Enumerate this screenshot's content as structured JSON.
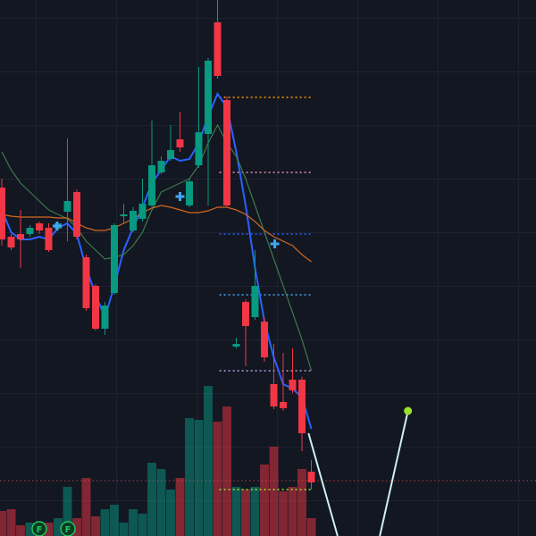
{
  "chart_data": {
    "type": "candlestick",
    "xlim": [
      -0.19,
      56.95
    ],
    "ylim": [
      0,
      600
    ],
    "y2lim": [
      0,
      600
    ],
    "up_color": "#089981",
    "down_color": "#f23645",
    "x": [
      0,
      1,
      2,
      3,
      4,
      5,
      6,
      7,
      8,
      9,
      10,
      11,
      12,
      13,
      14,
      15,
      16,
      17,
      18,
      19,
      20,
      21,
      22,
      23,
      24,
      25,
      26,
      27,
      28,
      29,
      30,
      31,
      32,
      33
    ],
    "open": [
      390,
      335,
      338,
      338,
      350,
      345,
      344,
      363,
      385,
      312,
      280,
      232,
      272,
      358,
      342,
      355,
      370,
      407,
      422,
      444,
      370,
      415,
      450,
      575,
      488,
      212,
      262,
      245,
      240,
      170,
      150,
      175,
      175,
      72
    ],
    "close": [
      332,
      323,
      332,
      345,
      342,
      320,
      350,
      375,
      335,
      255,
      232,
      258,
      348,
      360,
      364,
      372,
      415,
      420,
      432,
      435,
      397,
      452,
      532,
      515,
      370,
      215,
      235,
      280,
      200,
      145,
      143,
      163,
      115,
      60
    ],
    "high": [
      400,
      338,
      365,
      348,
      352,
      350,
      352,
      445,
      388,
      315,
      282,
      262,
      350,
      372,
      368,
      400,
      465,
      425,
      460,
      475,
      400,
      525,
      535,
      600,
      492,
      222,
      265,
      320,
      245,
      215,
      205,
      210,
      178,
      85
    ],
    "low": [
      325,
      320,
      300,
      335,
      338,
      318,
      342,
      330,
      332,
      252,
      230,
      225,
      270,
      350,
      340,
      352,
      368,
      405,
      420,
      430,
      368,
      412,
      370,
      512,
      368,
      210,
      190,
      242,
      195,
      142,
      140,
      160,
      95,
      52
    ],
    "volume": [
      28,
      30,
      12,
      15,
      15,
      15,
      20,
      55,
      20,
      65,
      22,
      30,
      35,
      15,
      30,
      25,
      82,
      75,
      52,
      65,
      132,
      130,
      168,
      128,
      145,
      55,
      52,
      55,
      80,
      100,
      50,
      55,
      75,
      20
    ],
    "lines": [
      {
        "color": "#2962ff",
        "values": [
          365,
          340,
          332,
          332,
          335,
          332,
          345,
          350,
          338,
          300,
          270,
          245,
          280,
          320,
          345,
          368,
          395,
          410,
          425,
          420,
          422,
          440,
          470,
          495,
          480,
          430,
          370,
          300,
          240,
          200,
          170,
          165,
          155,
          120
        ]
      },
      {
        "color": "#3d7a4a",
        "values": [
          430,
          410,
          395,
          385,
          375,
          365,
          360,
          355,
          345,
          330,
          320,
          310,
          312,
          315,
          325,
          340,
          365,
          385,
          390,
          395,
          400,
          415,
          440,
          460,
          440,
          425,
          400,
          370,
          340,
          310,
          280,
          250,
          220,
          185
        ]
      },
      {
        "color": "#d3681f",
        "values": [
          360,
          358,
          357,
          357,
          357,
          357,
          356,
          356,
          350,
          345,
          342,
          342,
          345,
          350,
          355,
          362,
          367,
          370,
          368,
          365,
          362,
          362,
          364,
          368,
          368,
          365,
          360,
          352,
          342,
          335,
          330,
          325,
          315,
          307
        ]
      }
    ],
    "projection": {
      "color": "#cfeef5",
      "end_color": "#9be22d",
      "x": [
        32.7,
        35.8,
        null,
        40.3,
        43.3
      ],
      "values": [
        115,
        0,
        null,
        0,
        140
      ]
    },
    "markers": {
      "color": "#42a5f5",
      "x": [
        5.9,
        19,
        29.1
      ],
      "values": [
        347,
        380,
        327
      ]
    },
    "levels": [
      {
        "value": 491,
        "color": "#ff9800",
        "from": 23.2,
        "to": 33
      },
      {
        "value": 407,
        "color": "#f48fb1",
        "from": 23.2,
        "to": 33
      },
      {
        "value": 338,
        "color": "#2962ff",
        "from": 23.2,
        "to": 33
      },
      {
        "value": 270,
        "color": "#42a5f5",
        "from": 23.2,
        "to": 33
      },
      {
        "value": 185,
        "color": "#b39ddb",
        "from": 23.2,
        "to": 33
      },
      {
        "value": 52,
        "color": "#9be22d",
        "from": 23.2,
        "to": 33
      },
      {
        "value": 62,
        "color": "#ef5350",
        "from": -0.19,
        "to": 56.95
      }
    ],
    "events": [
      {
        "label": "F",
        "x": 4,
        "value": 8
      },
      {
        "label": "F",
        "x": 7.05,
        "value": 8
      }
    ]
  }
}
